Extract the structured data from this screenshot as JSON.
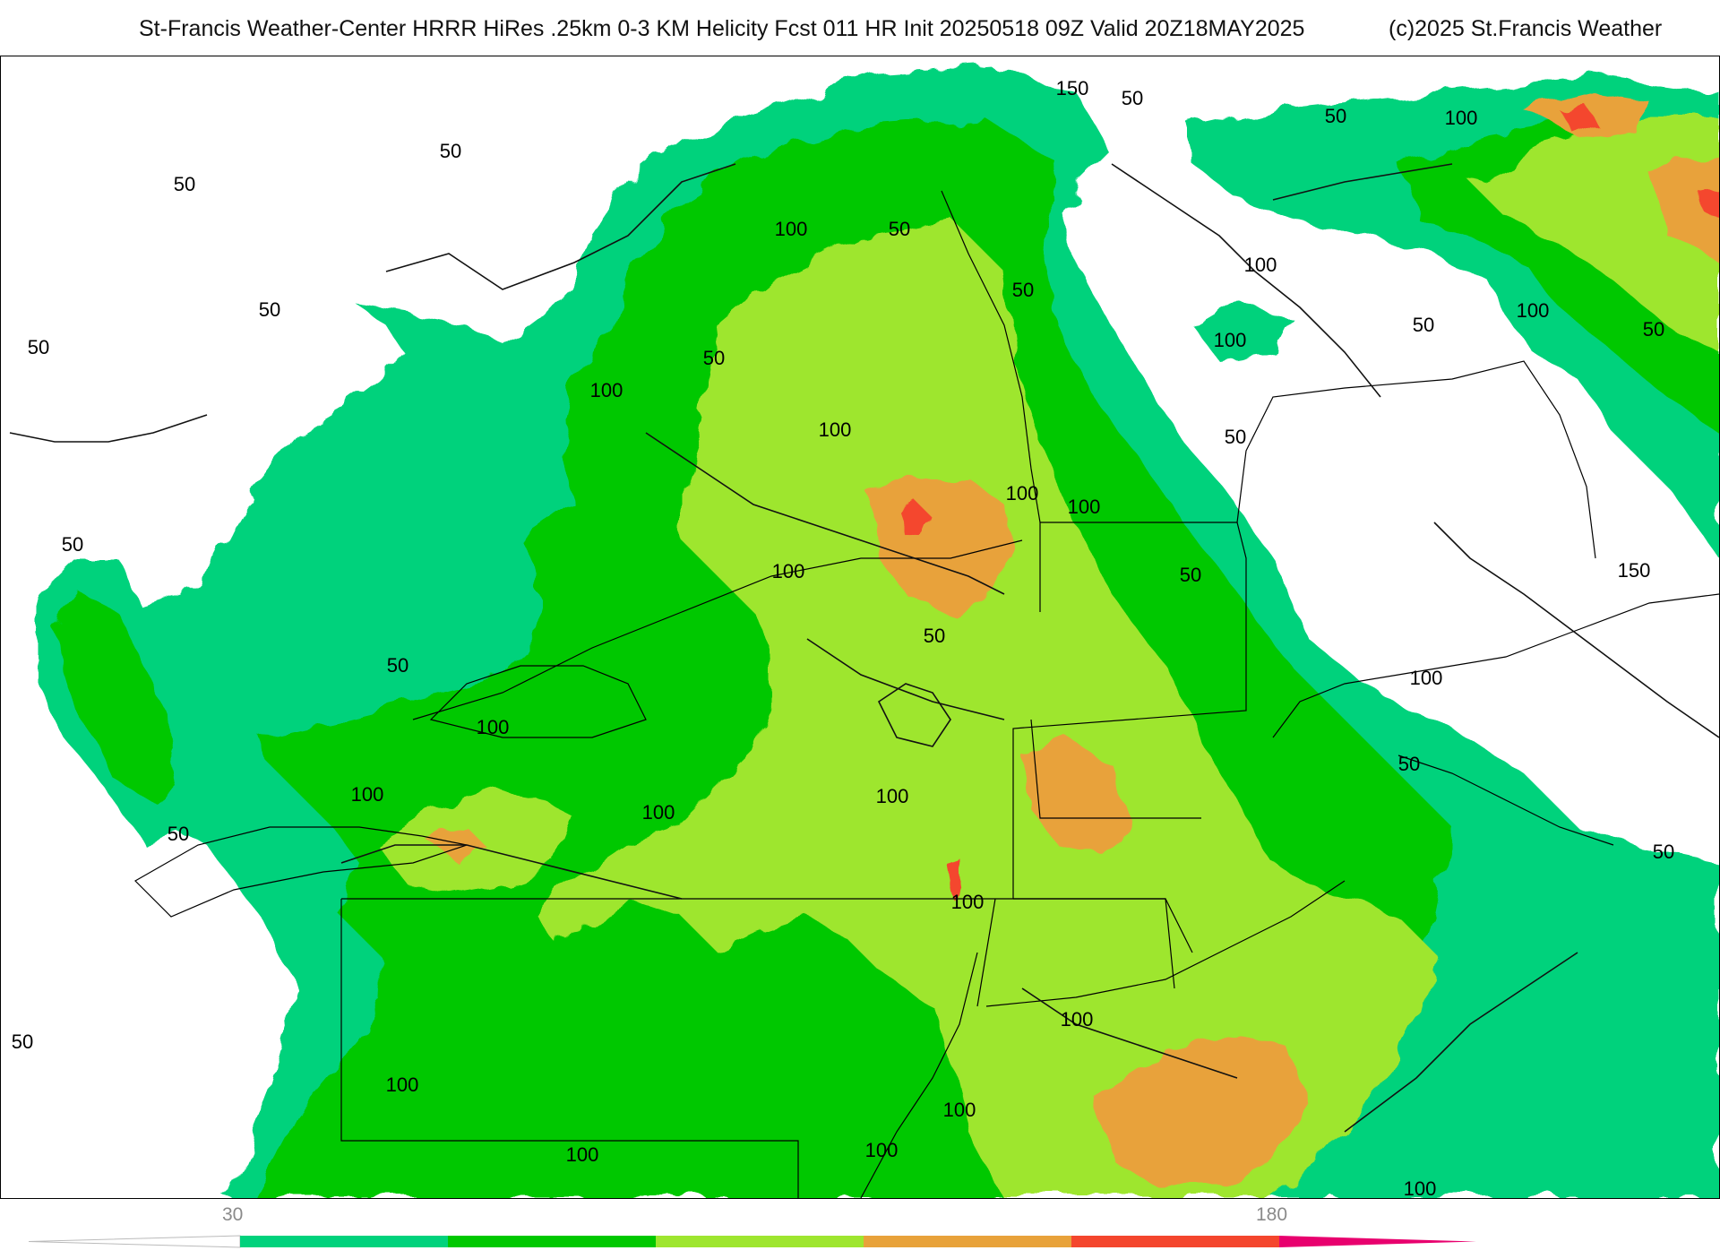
{
  "header": {
    "title": "St-Francis Weather-Center HRRR HiRes .25km 0-3 KM Helicity Fcst 011 HR Init 20250518 09Z  Valid 20Z18MAY2025",
    "copyright": "(c)2025 St.Francis Weather"
  },
  "map": {
    "variable": "0-3 km storm-relative helicity",
    "contour_labels": [
      "150",
      "50",
      "50",
      "100",
      "50",
      "50",
      "100",
      "50",
      "100",
      "50",
      "50",
      "100",
      "50",
      "50",
      "100",
      "50",
      "50",
      "100",
      "50",
      "100",
      "100",
      "100",
      "50",
      "50",
      "100",
      "150",
      "50",
      "50",
      "100",
      "100",
      "50",
      "100",
      "100",
      "100",
      "50",
      "100",
      "100",
      "100",
      "100",
      "100",
      "100",
      "50",
      "100",
      "50"
    ]
  },
  "colorbar": {
    "colors": [
      "#00d27c",
      "#00c800",
      "#9ee62f",
      "#e8a23a",
      "#f4462d",
      "#e8006e"
    ],
    "tick_labels": [
      "30",
      "180"
    ]
  }
}
